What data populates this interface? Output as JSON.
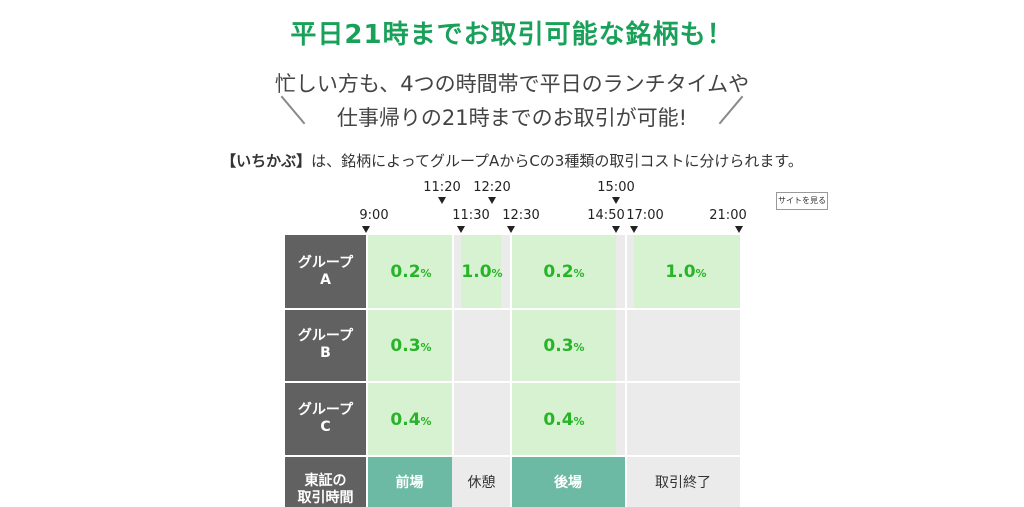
{
  "heading": "平日21時までお取引可能な銘柄も！",
  "subtitle_line1": "忙しい方も、4つの時間帯で平日のランチタイムや",
  "subtitle_line2": "仕事帰りの21時までのお取引が可能!",
  "description_bold": "【いちかぶ】",
  "description_rest": "は、銘柄によってグループAからCの3種類の取引コストに分けられます。",
  "site_button": "サイトを見る",
  "times_upper": [
    "11:20",
    "12:20",
    "15:00"
  ],
  "times_lower": [
    "9:00",
    "11:30",
    "12:30",
    "14:50",
    "17:00",
    "21:00"
  ],
  "groups": [
    {
      "name": "グループ\nA",
      "rates": {
        "morning": "0.2",
        "lunch": "1.0",
        "afternoon": "0.2",
        "evening": "1.0"
      }
    },
    {
      "name": "グループ\nB",
      "rates": {
        "morning": "0.3",
        "afternoon": "0.3"
      }
    },
    {
      "name": "グループ\nC",
      "rates": {
        "morning": "0.4",
        "afternoon": "0.4"
      }
    }
  ],
  "percent_sign": "%",
  "session_row": {
    "header": "東証の\n取引時間",
    "morning": "前場",
    "break": "休憩",
    "afternoon": "後場",
    "closed": "取引終了"
  }
}
